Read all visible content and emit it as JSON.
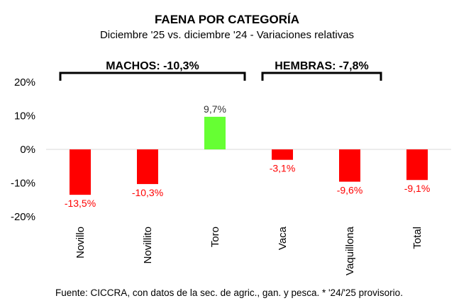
{
  "chart_data": {
    "type": "bar",
    "title": "FAENA POR CATEGORÍA",
    "subtitle": "Diciembre '25 vs. diciembre '24 - Variaciones relativas",
    "categories": [
      "Novillo",
      "Novillito",
      "Toro",
      "Vaca",
      "Vaquillona",
      "Total"
    ],
    "values": [
      -13.5,
      -10.3,
      9.7,
      -3.1,
      -9.6,
      -9.1
    ],
    "data_labels": [
      "-13,5%",
      "-10,3%",
      "9,7%",
      "-3,1%",
      "-9,6%",
      "-9,1%"
    ],
    "ylim": [
      -20,
      20
    ],
    "yticks": [
      20,
      10,
      0,
      -10,
      -20
    ],
    "ytick_labels": [
      "20%",
      "10%",
      "0%",
      "-10%",
      "-20%"
    ],
    "groups": [
      {
        "label": "MACHOS: -10,3%",
        "from": 0,
        "to": 2
      },
      {
        "label": "HEMBRAS: -7,8%",
        "from": 3,
        "to": 4
      }
    ],
    "xlabel": "",
    "ylabel": "",
    "grid": false,
    "colors": {
      "positive": "#66ff33",
      "negative": "#ff0000",
      "positive_label": "#333333",
      "negative_label": "#ff0000"
    },
    "footnote": "Fuente: CICCRA, con datos de la sec. de agric., gan. y pesca. * '24/'25 provisorio."
  }
}
